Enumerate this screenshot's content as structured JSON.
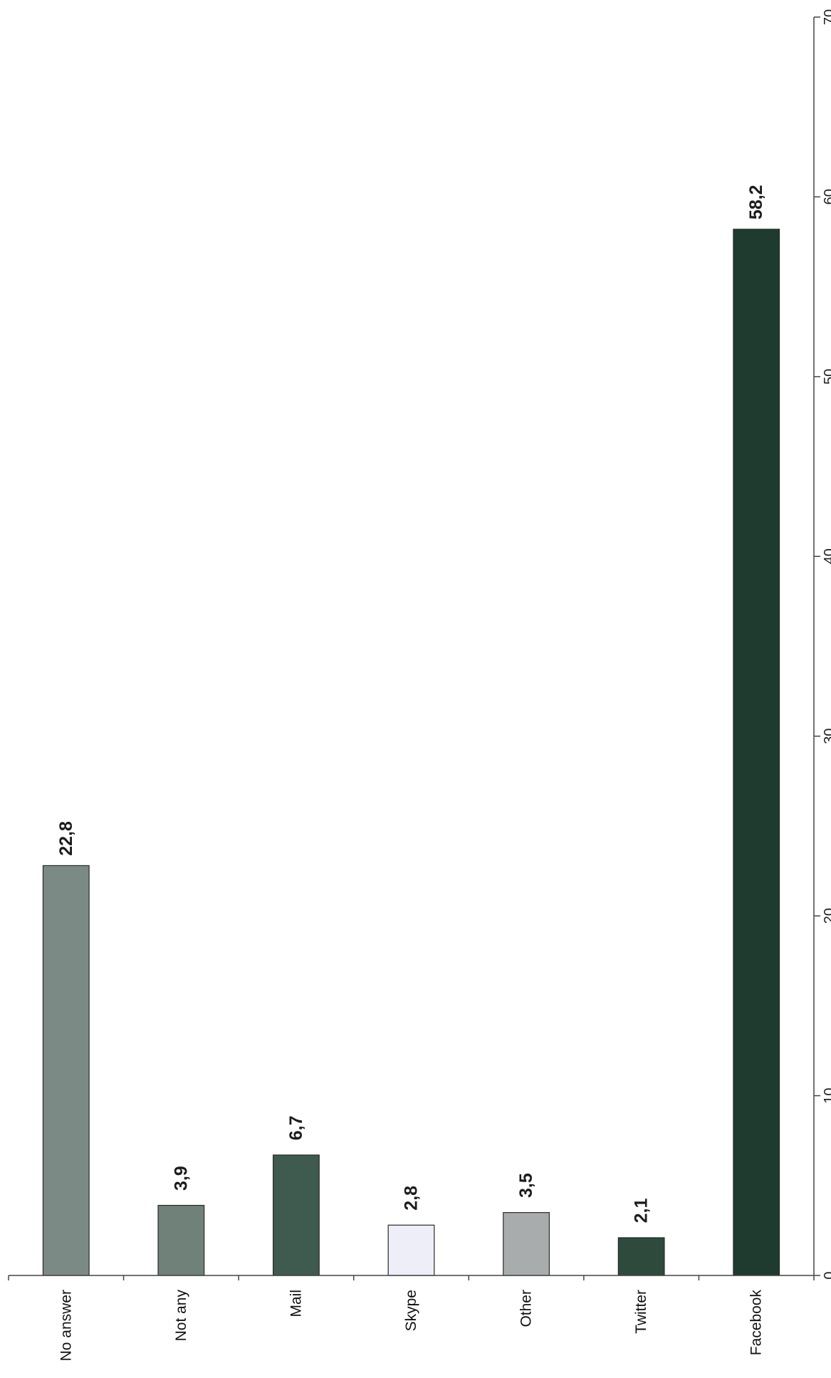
{
  "chart_data": {
    "type": "bar",
    "orientation": "rotated",
    "categories": [
      "No answer",
      "Not any",
      "Mail",
      "Skype",
      "Other",
      "Twitter",
      "Facebook"
    ],
    "values": [
      22.8,
      3.9,
      6.7,
      2.8,
      3.5,
      2.1,
      58.2
    ],
    "value_labels": [
      "22,8",
      "3,9",
      "6,7",
      "2,8",
      "3,5",
      "2,1",
      "58,2"
    ],
    "colors": [
      "#7b8a84",
      "#6f8179",
      "#3f5a4e",
      "#eeeef8",
      "#a9acad",
      "#2d4a3d",
      "#1f3a2f"
    ],
    "title": "",
    "xlabel": "",
    "ylabel": "",
    "ylim": [
      0,
      70
    ],
    "ticks": [
      0,
      10,
      20,
      30,
      40,
      50,
      60,
      70
    ],
    "tick_labels": [
      "0",
      "10",
      "20",
      "30",
      "40",
      "50",
      "60",
      "70"
    ],
    "grid": false,
    "legend": "none"
  }
}
